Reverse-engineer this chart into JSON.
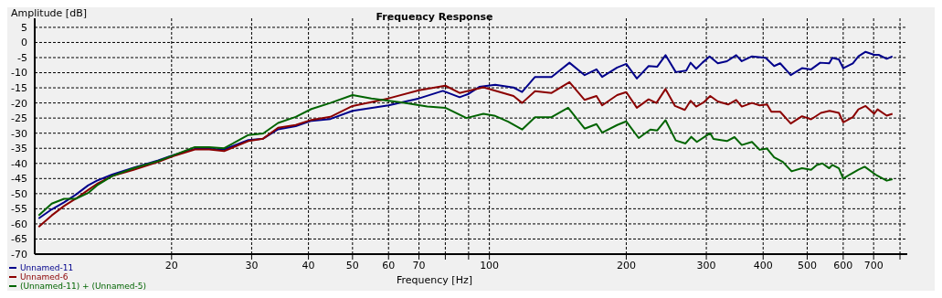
{
  "chart_data": {
    "type": "line",
    "title": "Frequency Response",
    "xlabel": "Frequency [Hz]",
    "ylabel": "Amplitude [dB]",
    "log": "x",
    "grid": true,
    "legend": "bottom left",
    "marker": "none",
    "line_style": "solid",
    "xlim": [
      10,
      830
    ],
    "ylim": [
      -70,
      8
    ],
    "xticks": [
      20,
      30,
      40,
      50,
      60,
      70,
      {
        "value": 80,
        "label": null
      },
      {
        "value": 90,
        "label": null
      },
      100,
      200,
      300,
      400,
      500,
      600,
      700,
      {
        "value": 800,
        "label": null
      }
    ],
    "yticks": [
      5,
      0,
      -5,
      -10,
      -15,
      -20,
      -25,
      -30,
      -35,
      -40,
      -45,
      -50,
      -55,
      -60,
      -65,
      -70
    ],
    "series": [
      {
        "name": "Unnamed-11",
        "color": "#00008b",
        "x": [
          10.2,
          10.9,
          11.6,
          12.3,
          13.1,
          13.7,
          14.8,
          16.5,
          18.7,
          20.1,
          22.5,
          24.2,
          26.1,
          29.5,
          31.8,
          34.3,
          37.5,
          40.6,
          44.7,
          50,
          60,
          70,
          79,
          86,
          90,
          95,
          103,
          113,
          118,
          126,
          137,
          150,
          162,
          172,
          177,
          191,
          200,
          211,
          224,
          234,
          244,
          257,
          271,
          277,
          285,
          294,
          305,
          318,
          333,
          349,
          359,
          378,
          405,
          423,
          436,
          460,
          487,
          510,
          534,
          559,
          568,
          587,
          600,
          630,
          648,
          672,
          702,
          718,
          748,
          770
        ],
        "values": [
          -58.2,
          -55.2,
          -52.9,
          -50.4,
          -47.3,
          -45.7,
          -43.7,
          -41.4,
          -39,
          -37.3,
          -35.2,
          -35.2,
          -35.4,
          -32.3,
          -31.8,
          -28.7,
          -27.7,
          -25.9,
          -25.3,
          -22.6,
          -20.8,
          -18.5,
          -16,
          -18.1,
          -17,
          -14.7,
          -14,
          -14.9,
          -16.4,
          -11.4,
          -11.4,
          -6.7,
          -10.8,
          -8.9,
          -11.4,
          -8.3,
          -7.1,
          -11.9,
          -7.8,
          -8,
          -4.2,
          -9.8,
          -9.3,
          -6.7,
          -8.7,
          -6.7,
          -4.6,
          -6.9,
          -6.2,
          -4.2,
          -6.2,
          -4.6,
          -5.1,
          -7.8,
          -6.9,
          -10.8,
          -8.5,
          -8.9,
          -6.7,
          -6.9,
          -5.1,
          -5.6,
          -8.5,
          -6.9,
          -4.6,
          -3.1,
          -4.1,
          -4.1,
          -5.4,
          -4.6
        ]
      },
      {
        "name": "Unnamed-6",
        "color": "#8b0000",
        "x": [
          10.2,
          10.9,
          11.6,
          12.3,
          13.1,
          13.7,
          14.8,
          16.5,
          18.7,
          20.1,
          22.5,
          24.2,
          26.1,
          29.5,
          31.8,
          34.3,
          37.5,
          40.6,
          44.7,
          50,
          60,
          70,
          80,
          86,
          97,
          113,
          118,
          126,
          137,
          150,
          162,
          172,
          177,
          191,
          200,
          211,
          224,
          233,
          244,
          256,
          269,
          277,
          285,
          296,
          306,
          318,
          335,
          349,
          359,
          378,
          393,
          408,
          417,
          436,
          460,
          487,
          510,
          536,
          560,
          587,
          600,
          630,
          648,
          672,
          702,
          714,
          748,
          770
        ],
        "values": [
          -61,
          -57.2,
          -54.1,
          -51.7,
          -48.8,
          -46.8,
          -44.2,
          -42.1,
          -39.5,
          -37.7,
          -35.4,
          -35.4,
          -35.9,
          -32.6,
          -31.8,
          -28.2,
          -27.3,
          -25.6,
          -24.6,
          -21,
          -18.5,
          -15.8,
          -14.3,
          -16.7,
          -14.8,
          -17.7,
          -20,
          -16.1,
          -16.7,
          -13.1,
          -19,
          -17.7,
          -20.8,
          -17.4,
          -16.4,
          -21.6,
          -18.8,
          -20,
          -15.4,
          -21,
          -22.3,
          -19.3,
          -21.2,
          -19.8,
          -17.7,
          -19.5,
          -20.5,
          -19,
          -21.2,
          -20,
          -20.8,
          -20.5,
          -22.9,
          -22.9,
          -26.8,
          -24.4,
          -25.4,
          -23.3,
          -22.6,
          -23.3,
          -26.4,
          -24.7,
          -22.1,
          -21,
          -23.6,
          -22.1,
          -24.2,
          -23.6
        ]
      },
      {
        "name": "(Unnamed-11) + (Unnamed-5)",
        "color": "#006400",
        "x": [
          10.2,
          10.9,
          11.6,
          12.3,
          13.1,
          13.7,
          14.8,
          16.5,
          18.7,
          22.5,
          24.2,
          26.1,
          29.5,
          31.8,
          34.3,
          37.5,
          40.6,
          44.7,
          50,
          55,
          65,
          73,
          80,
          89,
          97,
          103,
          110,
          118,
          126,
          137,
          149,
          162,
          172,
          177,
          191,
          200,
          213,
          226,
          234,
          244,
          257,
          270,
          278,
          286,
          306,
          311,
          333,
          346,
          359,
          378,
          393,
          408,
          423,
          442,
          462,
          487,
          510,
          525,
          540,
          559,
          568,
          587,
          600,
          620,
          648,
          669,
          707,
          748,
          770
        ],
        "values": [
          -57.2,
          -53.3,
          -51.7,
          -51.7,
          -49.8,
          -47.3,
          -44.2,
          -41.6,
          -39.2,
          -34.6,
          -34.6,
          -35,
          -30.6,
          -30.1,
          -26.6,
          -24.6,
          -22,
          -20,
          -17.4,
          -18.5,
          -20,
          -21.2,
          -21.6,
          -25,
          -23.6,
          -24.3,
          -26.2,
          -28.8,
          -24.7,
          -24.7,
          -21.6,
          -28.5,
          -27,
          -29.8,
          -27.3,
          -26.1,
          -31.6,
          -28.8,
          -29.1,
          -25.7,
          -32.4,
          -33.4,
          -31.2,
          -32.9,
          -30,
          -31.9,
          -32.6,
          -31.3,
          -33.9,
          -32.9,
          -35.5,
          -35.1,
          -38,
          -39.5,
          -42.6,
          -41.6,
          -42.1,
          -40.5,
          -40,
          -41.6,
          -40.5,
          -41.6,
          -45,
          -43.7,
          -42.1,
          -41.1,
          -43.7,
          -45.7,
          -45.2
        ]
      }
    ]
  }
}
